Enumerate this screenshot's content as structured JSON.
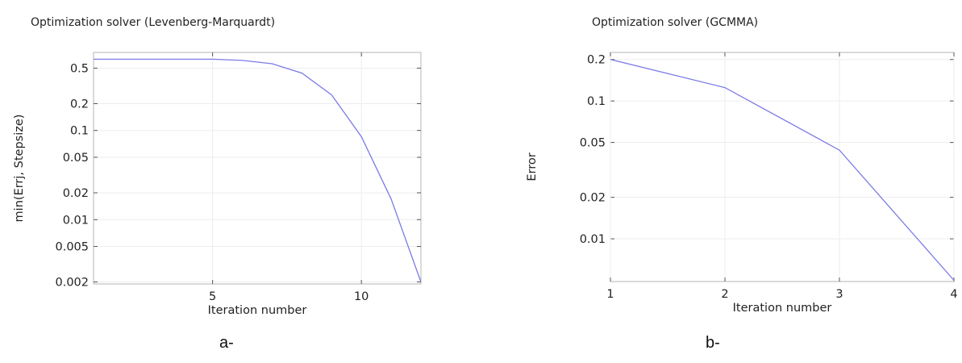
{
  "chart_data": [
    {
      "type": "line",
      "title": "Optimization solver (Levenberg-Marquardt)",
      "xlabel": "Iteration number",
      "ylabel": "min(Errj, Stepsize)",
      "xlim": [
        1,
        12
      ],
      "ylim": [
        0.0019,
        0.75
      ],
      "yscale": "log",
      "grid": true,
      "x_ticks": [
        5,
        10
      ],
      "y_ticks": [
        0.5,
        0.2,
        0.1,
        0.05,
        0.02,
        0.01,
        0.005,
        0.002
      ],
      "y_tick_labels": [
        "0.5",
        "0.2",
        "0.1",
        "0.05",
        "0.02",
        "0.01",
        "0.005",
        "0.002"
      ],
      "line_color": "#7b7be6",
      "series": [
        {
          "x": [
            1,
            2,
            3,
            4,
            5,
            6,
            7,
            8,
            9,
            10,
            11,
            12
          ],
          "y": [
            0.63,
            0.63,
            0.63,
            0.63,
            0.63,
            0.61,
            0.56,
            0.44,
            0.25,
            0.085,
            0.017,
            0.002
          ]
        }
      ],
      "caption": "a-"
    },
    {
      "type": "line",
      "title": "Optimization solver (GCMMA)",
      "xlabel": "Iteration number",
      "ylabel": "Error",
      "xlim": [
        1,
        4
      ],
      "ylim": [
        0.0049,
        0.225
      ],
      "yscale": "log",
      "grid": true,
      "x_ticks": [
        1,
        2,
        3,
        4
      ],
      "y_ticks": [
        0.2,
        0.1,
        0.05,
        0.02,
        0.01
      ],
      "y_tick_labels": [
        "0.2",
        "0.1",
        "0.05",
        "0.02",
        "0.01"
      ],
      "line_color": "#7b7be6",
      "series": [
        {
          "x": [
            1,
            2,
            3,
            4
          ],
          "y": [
            0.2,
            0.125,
            0.044,
            0.005
          ]
        }
      ],
      "caption": "b-"
    }
  ]
}
